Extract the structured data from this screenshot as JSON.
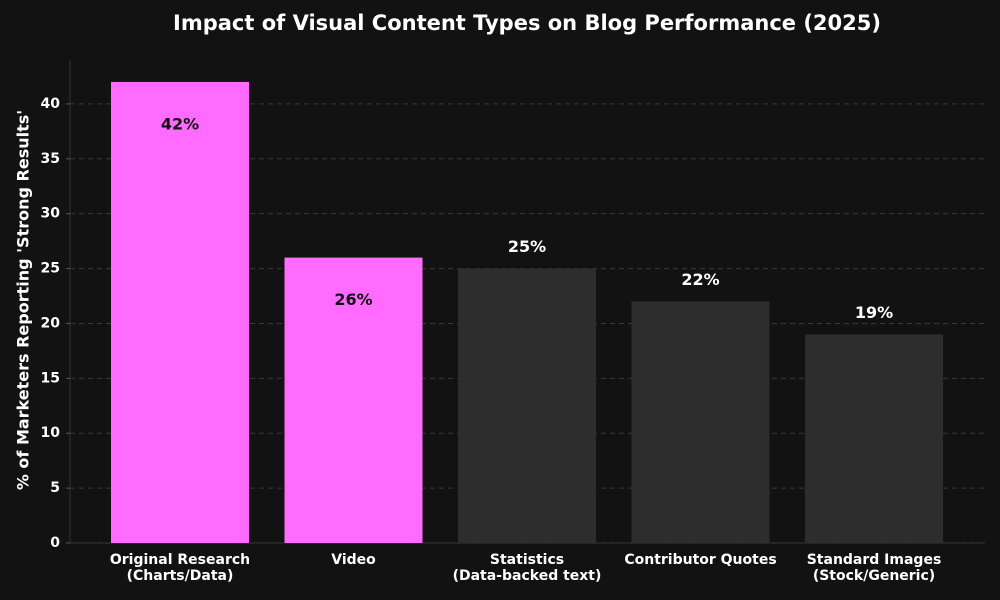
{
  "chart_data": {
    "type": "bar",
    "title": "Impact of Visual Content Types on Blog Performance (2025)",
    "y_label": "% of Marketers Reporting 'Strong Results'",
    "categories": [
      "Original Research\n(Charts/Data)",
      "Video",
      "Statistics\n(Data-backed text)",
      "Contributor Quotes",
      "Standard Images\n(Stock/Generic)"
    ],
    "values": [
      42,
      26,
      25,
      22,
      19
    ],
    "value_labels": [
      "42%",
      "26%",
      "25%",
      "22%",
      "19%"
    ],
    "colors": [
      "#ff6bff",
      "#ff6bff",
      "#2d2d2d",
      "#2d2d2d",
      "#2d2d2d"
    ],
    "ylim": [
      0,
      44
    ],
    "yticks": [
      0,
      5,
      10,
      15,
      20,
      25,
      30,
      35,
      40
    ],
    "grid": true
  }
}
